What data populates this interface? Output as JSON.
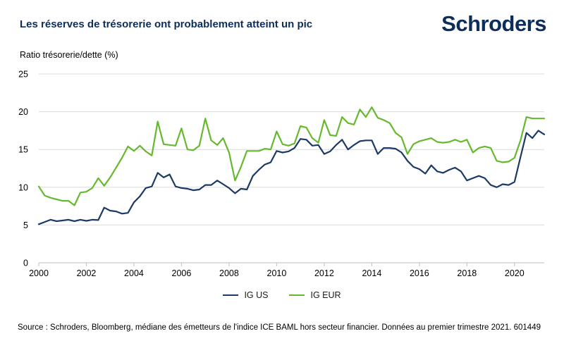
{
  "report": {
    "title": "Les réserves de trésorerie ont probablement atteint un pic",
    "brand": "Schroders"
  },
  "chart_data": {
    "type": "line",
    "title": "Les réserves de trésorerie ont probablement atteint un pic",
    "ylabel": "Ratio trésorerie/dette (%)",
    "xlabel": "",
    "grid": "horizontal",
    "legend_position": "bottom-center",
    "xlim": [
      2000,
      2021.25
    ],
    "ylim": [
      0,
      25
    ],
    "x_start": 2000,
    "x_step": 0.25,
    "x_ticks": [
      2000,
      2002,
      2004,
      2006,
      2008,
      2010,
      2012,
      2014,
      2016,
      2018,
      2020
    ],
    "y_ticks": [
      0,
      5,
      10,
      15,
      20,
      25
    ],
    "series": [
      {
        "name": "IG US",
        "color": "#1c3a66",
        "values": [
          5.1,
          5.4,
          5.7,
          5.5,
          5.6,
          5.7,
          5.5,
          5.7,
          5.55,
          5.7,
          5.65,
          7.3,
          6.9,
          6.8,
          6.5,
          6.6,
          8.0,
          8.8,
          9.9,
          10.1,
          11.9,
          11.3,
          11.7,
          10.1,
          9.9,
          9.8,
          9.6,
          9.7,
          10.3,
          10.3,
          10.9,
          10.4,
          9.9,
          9.2,
          9.8,
          9.7,
          11.5,
          12.3,
          13.0,
          13.3,
          14.8,
          14.6,
          14.75,
          15.2,
          16.4,
          16.3,
          15.5,
          15.6,
          14.4,
          14.75,
          15.6,
          16.3,
          15.0,
          15.6,
          16.1,
          16.2,
          16.2,
          14.4,
          15.2,
          15.2,
          15.1,
          14.6,
          13.5,
          12.7,
          12.4,
          11.8,
          12.9,
          12.1,
          11.9,
          12.3,
          12.6,
          12.1,
          10.9,
          11.2,
          11.5,
          11.2,
          10.3,
          10.0,
          10.4,
          10.3,
          10.7,
          14.0,
          17.2,
          16.5,
          17.5,
          17.0
        ]
      },
      {
        "name": "IG EUR",
        "color": "#66b92e",
        "values": [
          10.1,
          8.9,
          8.6,
          8.4,
          8.2,
          8.2,
          7.6,
          9.3,
          9.4,
          9.9,
          11.2,
          10.2,
          11.3,
          12.6,
          13.9,
          15.4,
          14.8,
          15.5,
          14.75,
          14.2,
          18.7,
          15.7,
          15.6,
          15.5,
          17.8,
          15.0,
          14.9,
          15.5,
          19.1,
          16.2,
          15.6,
          16.5,
          14.6,
          10.9,
          12.7,
          14.8,
          14.8,
          14.8,
          15.1,
          15.0,
          17.4,
          15.7,
          15.5,
          15.8,
          18.1,
          17.9,
          16.5,
          15.9,
          18.9,
          16.9,
          16.8,
          19.3,
          18.5,
          18.3,
          20.3,
          19.3,
          20.6,
          19.2,
          18.9,
          18.5,
          17.2,
          16.6,
          14.4,
          15.7,
          16.1,
          16.3,
          16.5,
          16.0,
          15.9,
          16.0,
          16.3,
          16.0,
          16.3,
          14.6,
          15.2,
          15.4,
          15.2,
          13.5,
          13.3,
          13.4,
          13.9,
          16.2,
          19.3,
          19.1,
          19.1,
          19.1
        ]
      }
    ]
  },
  "source": {
    "text": "Source : Schroders, Bloomberg, médiane des émetteurs de l'indice ICE BAML hors secteur financier. Données au premier trimestre 2021. 601449"
  },
  "colors": {
    "brand_navy": "#0d2d5b",
    "grid": "#dcdcdc",
    "axis": "#c9c9c9",
    "tick_text": "#000000"
  }
}
